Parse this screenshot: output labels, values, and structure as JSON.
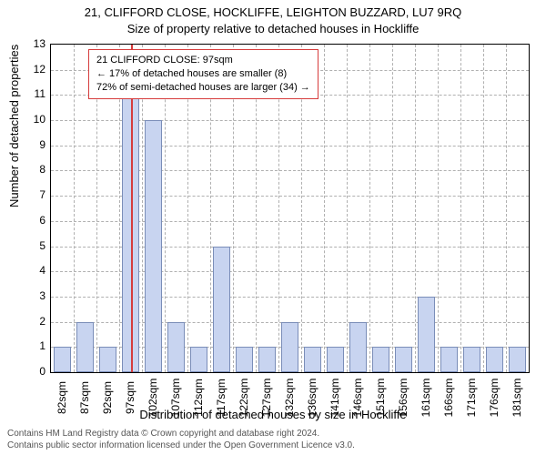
{
  "chart": {
    "type": "histogram",
    "title_line1": "21, CLIFFORD CLOSE, HOCKLIFFE, LEIGHTON BUZZARD, LU7 9RQ",
    "title_line2": "Size of property relative to detached houses in Hockliffe",
    "title_fontsize": 13,
    "y_axis_label": "Number of detached properties",
    "x_axis_label": "Distribution of detached houses by size in Hockliffe",
    "label_fontsize": 13,
    "ylim": [
      0,
      13
    ],
    "ytick_step": 1,
    "x_categories": [
      "82sqm",
      "87sqm",
      "92sqm",
      "97sqm",
      "102sqm",
      "107sqm",
      "112sqm",
      "117sqm",
      "122sqm",
      "127sqm",
      "132sqm",
      "136sqm",
      "141sqm",
      "146sqm",
      "151sqm",
      "156sqm",
      "161sqm",
      "166sqm",
      "171sqm",
      "176sqm",
      "181sqm"
    ],
    "values": [
      1,
      2,
      1,
      12,
      10,
      2,
      1,
      5,
      1,
      1,
      2,
      1,
      1,
      2,
      1,
      1,
      3,
      1,
      1,
      1,
      1
    ],
    "bar_color": "#c8d4f0",
    "bar_border_color": "#7a8db8",
    "background_color": "#ffffff",
    "grid_color": "#b0b0b0",
    "marker_index": 3,
    "marker_color": "#d63c3c",
    "bar_width_ratio": 0.74,
    "annotation": {
      "line1": "21 CLIFFORD CLOSE: 97sqm",
      "line2": "← 17% of detached houses are smaller (8)",
      "line3": "72% of semi-detached houses are larger (34) →",
      "border_color": "#d63c3c"
    },
    "footer_line1": "Contains HM Land Registry data © Crown copyright and database right 2024.",
    "footer_line2": "Contains public sector information licensed under the Open Government Licence v3.0."
  }
}
